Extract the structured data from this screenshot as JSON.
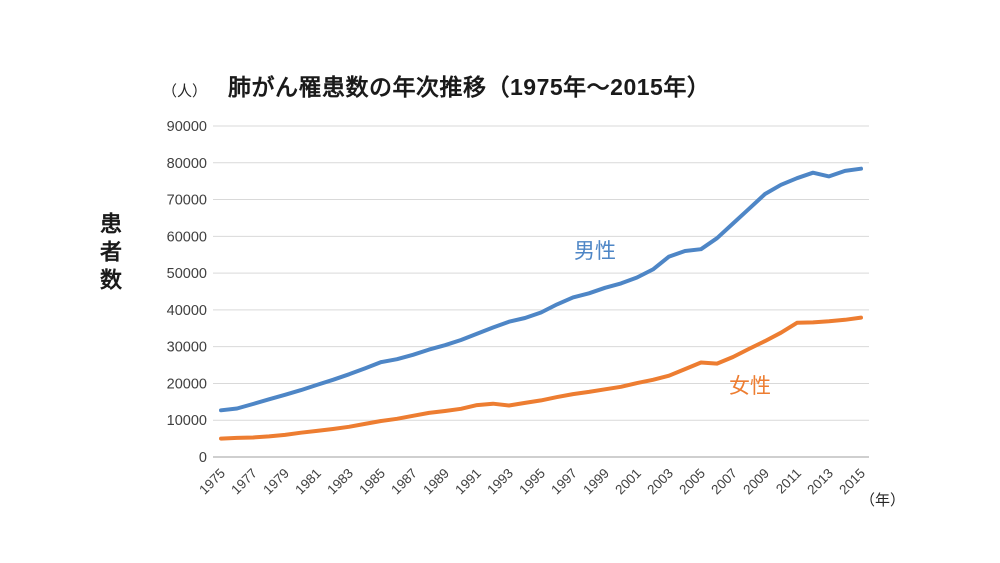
{
  "title": "肺がん罹患数の年次推移（1975年～2015年）",
  "y_unit_label": "（人）",
  "x_unit_label": "（年）",
  "y_axis_title": "患者数",
  "colors": {
    "male": "#4E86C6",
    "female": "#ED7D31",
    "gridline": "#D9D9D9",
    "axis_line": "#BFBFBF",
    "tick_text": "#3F3F3F",
    "title_text": "#1A1A1A"
  },
  "chart_data": {
    "type": "line",
    "title": "肺がん罹患数の年次推移（1975年～2015年）",
    "xlabel": "年",
    "ylabel": "患者数（人）",
    "ylim": [
      0,
      90000
    ],
    "yticks": [
      0,
      10000,
      20000,
      30000,
      40000,
      50000,
      60000,
      70000,
      80000,
      90000
    ],
    "xticks": [
      1975,
      1977,
      1979,
      1981,
      1983,
      1985,
      1987,
      1989,
      1991,
      1993,
      1995,
      1997,
      1999,
      2001,
      2003,
      2005,
      2007,
      2009,
      2011,
      2013,
      2015
    ],
    "grid": "horizontal",
    "legend_position": "inline-labels",
    "x": [
      1975,
      1976,
      1977,
      1978,
      1979,
      1980,
      1981,
      1982,
      1983,
      1984,
      1985,
      1986,
      1987,
      1988,
      1989,
      1990,
      1991,
      1992,
      1993,
      1994,
      1995,
      1996,
      1997,
      1998,
      1999,
      2000,
      2001,
      2002,
      2003,
      2004,
      2005,
      2006,
      2007,
      2008,
      2009,
      2010,
      2011,
      2012,
      2013,
      2014,
      2015
    ],
    "series": [
      {
        "name": "男性",
        "color_key": "male",
        "values": [
          12700,
          13200,
          14400,
          15700,
          16900,
          18200,
          19600,
          21000,
          22500,
          24100,
          25800,
          26600,
          27800,
          29200,
          30400,
          31800,
          33500,
          35200,
          36800,
          37800,
          39300,
          41500,
          43400,
          44500,
          46000,
          47200,
          48800,
          51000,
          54500,
          56000,
          56500,
          59500,
          63500,
          67500,
          71500,
          74000,
          75800,
          77300,
          76300,
          77800,
          78400
        ]
      },
      {
        "name": "女性",
        "color_key": "female",
        "values": [
          5000,
          5200,
          5300,
          5600,
          6000,
          6600,
          7100,
          7600,
          8200,
          9000,
          9800,
          10400,
          11200,
          12000,
          12500,
          13100,
          14100,
          14500,
          14000,
          14700,
          15400,
          16300,
          17100,
          17700,
          18400,
          19100,
          20100,
          21000,
          22100,
          23900,
          25700,
          25400,
          27200,
          29400,
          31500,
          33800,
          36500,
          36600,
          36900,
          37300,
          37900
        ]
      }
    ]
  }
}
